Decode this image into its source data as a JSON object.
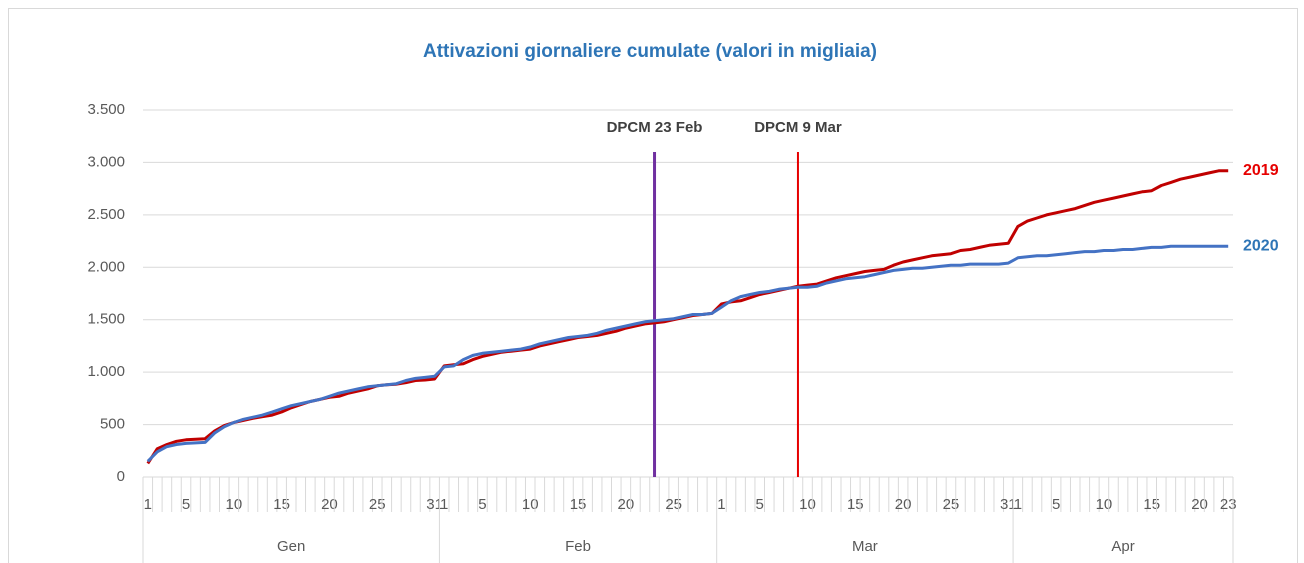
{
  "chart_data": {
    "type": "line",
    "title": "Attivazioni giornaliere cumulate (valori in migliaia)",
    "groups": [
      {
        "name": "Gen",
        "categories": [
          "1",
          null,
          null,
          null,
          "5",
          null,
          null,
          null,
          null,
          "10",
          null,
          null,
          null,
          null,
          "15",
          null,
          null,
          null,
          null,
          "20",
          null,
          null,
          null,
          null,
          "25",
          null,
          null,
          null,
          null,
          null,
          "31"
        ]
      },
      {
        "name": "Feb",
        "categories": [
          "1",
          null,
          null,
          null,
          "5",
          null,
          null,
          null,
          null,
          "10",
          null,
          null,
          null,
          null,
          "15",
          null,
          null,
          null,
          null,
          "20",
          null,
          null,
          null,
          null,
          "25",
          null,
          null,
          null,
          null
        ]
      },
      {
        "name": "Mar",
        "categories": [
          "1",
          null,
          null,
          null,
          "5",
          null,
          null,
          null,
          null,
          "10",
          null,
          null,
          null,
          null,
          "15",
          null,
          null,
          null,
          null,
          "20",
          null,
          null,
          null,
          null,
          "25",
          null,
          null,
          null,
          null,
          null,
          "31"
        ]
      },
      {
        "name": "Apr",
        "categories": [
          "1",
          null,
          null,
          null,
          "5",
          null,
          null,
          null,
          null,
          "10",
          null,
          null,
          null,
          null,
          "15",
          null,
          null,
          null,
          null,
          "20",
          null,
          null,
          "23"
        ]
      }
    ],
    "series": [
      {
        "name": "2019",
        "color": "#c00000",
        "label_color": "#e60000",
        "values": [
          130,
          270,
          310,
          340,
          355,
          360,
          365,
          440,
          490,
          520,
          540,
          560,
          575,
          590,
          620,
          660,
          690,
          720,
          740,
          760,
          770,
          800,
          820,
          840,
          870,
          880,
          885,
          900,
          920,
          925,
          935,
          1060,
          1070,
          1080,
          1120,
          1150,
          1170,
          1190,
          1200,
          1210,
          1220,
          1250,
          1270,
          1290,
          1310,
          1330,
          1340,
          1350,
          1370,
          1390,
          1420,
          1440,
          1460,
          1470,
          1480,
          1500,
          1520,
          1540,
          1550,
          1560,
          1650,
          1670,
          1680,
          1710,
          1740,
          1760,
          1780,
          1800,
          1820,
          1830,
          1840,
          1870,
          1900,
          1920,
          1940,
          1960,
          1970,
          1980,
          2020,
          2050,
          2070,
          2090,
          2110,
          2120,
          2130,
          2160,
          2170,
          2190,
          2210,
          2220,
          2230,
          2390,
          2440,
          2470,
          2500,
          2520,
          2540,
          2560,
          2590,
          2620,
          2640,
          2660,
          2680,
          2700,
          2720,
          2730,
          2780,
          2810,
          2840,
          2860,
          2880,
          2900,
          2920,
          2920
        ]
      },
      {
        "name": "2020",
        "color": "#4472c4",
        "label_color": "#2e75b6",
        "values": [
          150,
          240,
          290,
          310,
          320,
          325,
          330,
          420,
          480,
          520,
          550,
          570,
          590,
          620,
          650,
          680,
          700,
          720,
          740,
          770,
          800,
          820,
          840,
          860,
          870,
          880,
          890,
          920,
          940,
          950,
          960,
          1050,
          1060,
          1120,
          1160,
          1180,
          1190,
          1200,
          1210,
          1220,
          1240,
          1270,
          1290,
          1310,
          1330,
          1340,
          1350,
          1370,
          1400,
          1420,
          1440,
          1460,
          1480,
          1490,
          1500,
          1510,
          1530,
          1550,
          1550,
          1560,
          1620,
          1680,
          1720,
          1740,
          1760,
          1770,
          1790,
          1800,
          1810,
          1810,
          1820,
          1850,
          1870,
          1890,
          1900,
          1910,
          1930,
          1950,
          1970,
          1980,
          1990,
          1990,
          2000,
          2010,
          2020,
          2020,
          2030,
          2030,
          2030,
          2030,
          2040,
          2090,
          2100,
          2110,
          2110,
          2120,
          2130,
          2140,
          2150,
          2150,
          2160,
          2160,
          2170,
          2170,
          2180,
          2190,
          2190,
          2200,
          2200,
          2200,
          2200,
          2200,
          2200,
          2200
        ]
      }
    ],
    "annotations": [
      {
        "text": "DPCM 23 Feb",
        "x": 53,
        "color": "#7030a0"
      },
      {
        "text": "DPCM 9 Mar",
        "x": 68,
        "color": "#e60000"
      }
    ],
    "ylim": [
      0,
      3500
    ],
    "yticks": [
      0,
      500,
      {
        "value": 1000,
        "label": "1.000"
      },
      {
        "value": 1500,
        "label": "1.500"
      },
      {
        "value": 2000,
        "label": "2.000"
      },
      {
        "value": 2500,
        "label": "2.500"
      },
      {
        "value": 3000,
        "label": "3.000"
      },
      {
        "value": 3500,
        "label": "3.500"
      }
    ],
    "grid": true
  }
}
